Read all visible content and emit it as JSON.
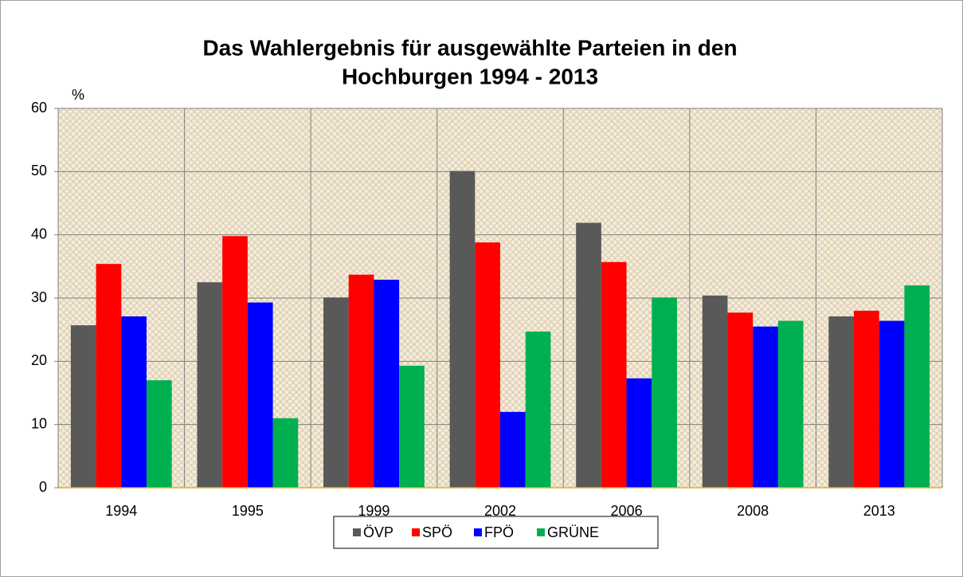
{
  "chart_data": {
    "type": "bar",
    "title": [
      "Das Wahlergebnis für ausgewählte Parteien in den",
      "Hochburgen 1994 - 2013"
    ],
    "y_label": "%",
    "categories": [
      "1994",
      "1995",
      "1999",
      "2002",
      "2006",
      "2008",
      "2013"
    ],
    "series": [
      {
        "name": "ÖVP",
        "color": "#595959",
        "values": [
          25.7,
          32.5,
          30.1,
          50.1,
          41.9,
          30.4,
          27.1
        ]
      },
      {
        "name": "SPÖ",
        "color": "#ff0000",
        "values": [
          35.4,
          39.8,
          33.7,
          38.8,
          35.7,
          27.7,
          28.0
        ]
      },
      {
        "name": "FPÖ",
        "color": "#0000ff",
        "values": [
          27.1,
          29.3,
          32.9,
          12.0,
          17.3,
          25.5,
          26.4
        ]
      },
      {
        "name": "GRÜNE",
        "color": "#00b050",
        "values": [
          17.0,
          11.0,
          19.3,
          24.7,
          30.1,
          26.4,
          32.0
        ]
      }
    ],
    "ylim": [
      0,
      60
    ],
    "yticks": [
      0,
      10,
      20,
      30,
      40,
      50,
      60
    ],
    "grid": true,
    "legend": "bottom"
  }
}
